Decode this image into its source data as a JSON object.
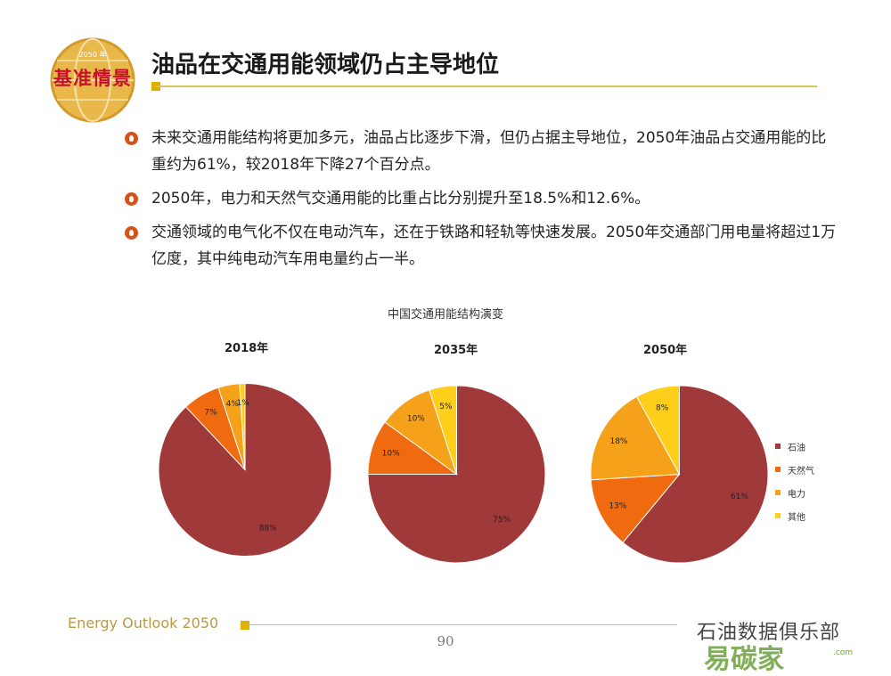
{
  "logo": {
    "text": "基准情景",
    "small": "2050 年"
  },
  "title": "油品在交通用能领域仍占主导地位",
  "bullets": [
    "未来交通用能结构将更加多元，油品占比逐步下滑，但仍占据主导地位，2050年油品占交通用能的比重约为61%，较2018年下降27个百分点。",
    "2050年，电力和天然气交通用能的比重占比分别提升至18.5%和12.6%。",
    "交通领域的电气化不仅在电动汽车，还在于铁路和轻轨等快速发展。2050年交通部门用电量将超过1万亿度，其中纯电动汽车用电量约占一半。"
  ],
  "colors": {
    "oil": "#a03a3a",
    "gas": "#f06a10",
    "power": "#f5a21a",
    "other": "#ffce1a",
    "accent": "#e0b000"
  },
  "chart_data": {
    "type": "pie",
    "title": "中国交通用能结构演变",
    "legend": [
      "石油",
      "天然气",
      "电力",
      "其他"
    ],
    "legend_position": "right",
    "pies": [
      {
        "label": "2018年",
        "values": [
          88,
          7,
          4,
          1
        ],
        "labels": [
          "88%",
          "7%",
          "4%",
          "1%"
        ]
      },
      {
        "label": "2035年",
        "values": [
          75,
          10,
          10,
          5
        ],
        "labels": [
          "75%",
          "10%",
          "10%",
          "5%"
        ]
      },
      {
        "label": "2050年",
        "values": [
          61,
          13,
          18,
          8
        ],
        "labels": [
          "61%",
          "13%",
          "18%",
          "8%"
        ]
      }
    ]
  },
  "footer": {
    "text": "Energy Outlook 2050",
    "page": "90"
  },
  "watermark": {
    "line1": "石油数据俱乐部",
    "line2": "易碳家",
    "line3": ".com"
  }
}
